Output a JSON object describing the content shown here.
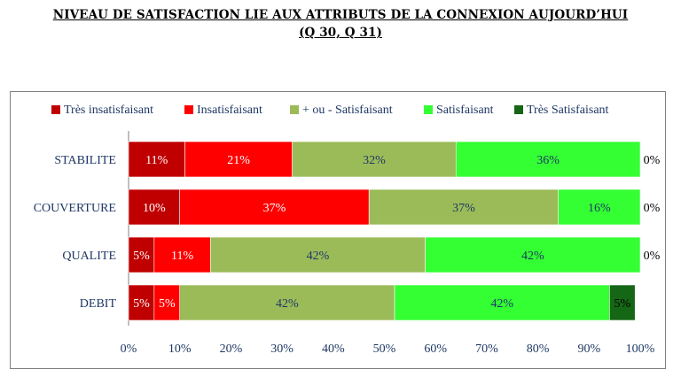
{
  "title": {
    "line1": "NIVEAU DE SATISFACTION LIE AUX ATTRIBUTS DE LA CONNEXION AUJOURD’HUI",
    "line2": "(Q 30, Q 31)"
  },
  "chart_data": {
    "type": "bar",
    "orientation": "horizontal",
    "stacked": true,
    "percent_stacked": true,
    "categories": [
      "STABILITE",
      "COUVERTURE",
      "QUALITE",
      "DEBIT"
    ],
    "series": [
      {
        "name": "Très insatisfaisant",
        "color": "#c00000",
        "values": [
          11,
          10,
          5,
          5
        ],
        "labels": [
          "11%",
          "10%",
          "5%",
          "5%"
        ]
      },
      {
        "name": "Insatisfaisant",
        "color": "#ff0000",
        "values": [
          21,
          37,
          11,
          5
        ],
        "labels": [
          "21%",
          "37%",
          "11%",
          "5%"
        ]
      },
      {
        "name": "+ ou - Satisfaisant",
        "color": "#9bbb59",
        "values": [
          32,
          37,
          42,
          42
        ],
        "labels": [
          "32%",
          "37%",
          "42%",
          "42%"
        ]
      },
      {
        "name": "Satisfaisant",
        "color": "#33ff33",
        "values": [
          36,
          16,
          42,
          42
        ],
        "labels": [
          "36%",
          "16%",
          "42%",
          "42%"
        ]
      },
      {
        "name": "Très Satisfaisant",
        "color": "#156615",
        "values": [
          0,
          0,
          0,
          5
        ],
        "labels": [
          "0%",
          "0%",
          "0%",
          "5%"
        ]
      }
    ],
    "x_ticks": [
      "0%",
      "10%",
      "20%",
      "30%",
      "40%",
      "50%",
      "60%",
      "70%",
      "80%",
      "90%",
      "100%"
    ],
    "xlim": [
      0,
      100
    ],
    "legend": "top",
    "grid": false
  }
}
